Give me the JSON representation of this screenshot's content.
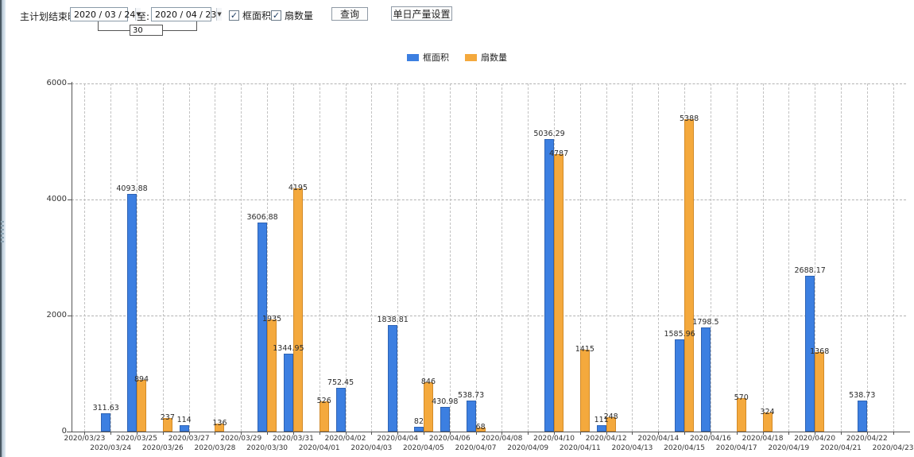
{
  "toolbar": {
    "plan_end_label": "主计划结束时间:",
    "date_from": "2020 / 03 / 24",
    "to_label": "至:",
    "date_to": "2020 / 04 / 23",
    "interval_value": "30",
    "checkboxes": [
      {
        "label": "框面积",
        "checked": true
      },
      {
        "label": "扇数量",
        "checked": true
      }
    ],
    "check_glyph": "✓",
    "dropdown_glyph": "▼",
    "query_button_label": "查询",
    "daily_output_button_label": "单日产量设置"
  },
  "legend": {
    "items": [
      {
        "label": "框面积",
        "color": "#3c7fe1"
      },
      {
        "label": "扇数量",
        "color": "#f4a93d"
      }
    ]
  },
  "chart_data": {
    "type": "bar",
    "title": "",
    "xlabel": "",
    "ylabel": "",
    "ylim": [
      0,
      6000
    ],
    "yticks": [
      0,
      2000,
      4000,
      6000
    ],
    "grid": "dashed",
    "legend_position": "top",
    "categories": [
      "2020/03/23",
      "2020/03/24",
      "2020/03/25",
      "2020/03/26",
      "2020/03/27",
      "2020/03/28",
      "2020/03/29",
      "2020/03/30",
      "2020/03/31",
      "2020/04/01",
      "2020/04/02",
      "2020/04/03",
      "2020/04/04",
      "2020/04/05",
      "2020/04/06",
      "2020/04/07",
      "2020/04/08",
      "2020/04/09",
      "2020/04/10",
      "2020/04/11",
      "2020/04/12",
      "2020/04/13",
      "2020/04/14",
      "2020/04/15",
      "2020/04/16",
      "2020/04/17",
      "2020/04/18",
      "2020/04/19",
      "2020/04/20",
      "2020/04/21",
      "2020/04/22",
      "2020/04/23"
    ],
    "series": [
      {
        "name": "框面积",
        "color": "#3c7fe1",
        "border_color": "#2e63b4",
        "values": [
          null,
          "311.63",
          "4093.88",
          null,
          "114",
          null,
          null,
          "3606.88",
          "1344.95",
          null,
          "752.45",
          null,
          "1838.81",
          "82",
          "430.98",
          "538.73",
          null,
          null,
          "5036.29",
          null,
          "111",
          null,
          null,
          "1585.96",
          "1798.5",
          null,
          null,
          null,
          "2688.17",
          null,
          "538.73",
          null
        ]
      },
      {
        "name": "扇数量",
        "color": "#f4a93d",
        "border_color": "#d28a28",
        "values": [
          null,
          null,
          "894",
          "237",
          null,
          "136",
          null,
          "1935",
          "4195",
          "526",
          null,
          null,
          null,
          "846",
          null,
          "68",
          null,
          null,
          "4787",
          "1415",
          "248",
          null,
          null,
          "5388",
          null,
          "570",
          "324",
          null,
          "1368",
          null,
          null,
          null
        ]
      }
    ]
  }
}
